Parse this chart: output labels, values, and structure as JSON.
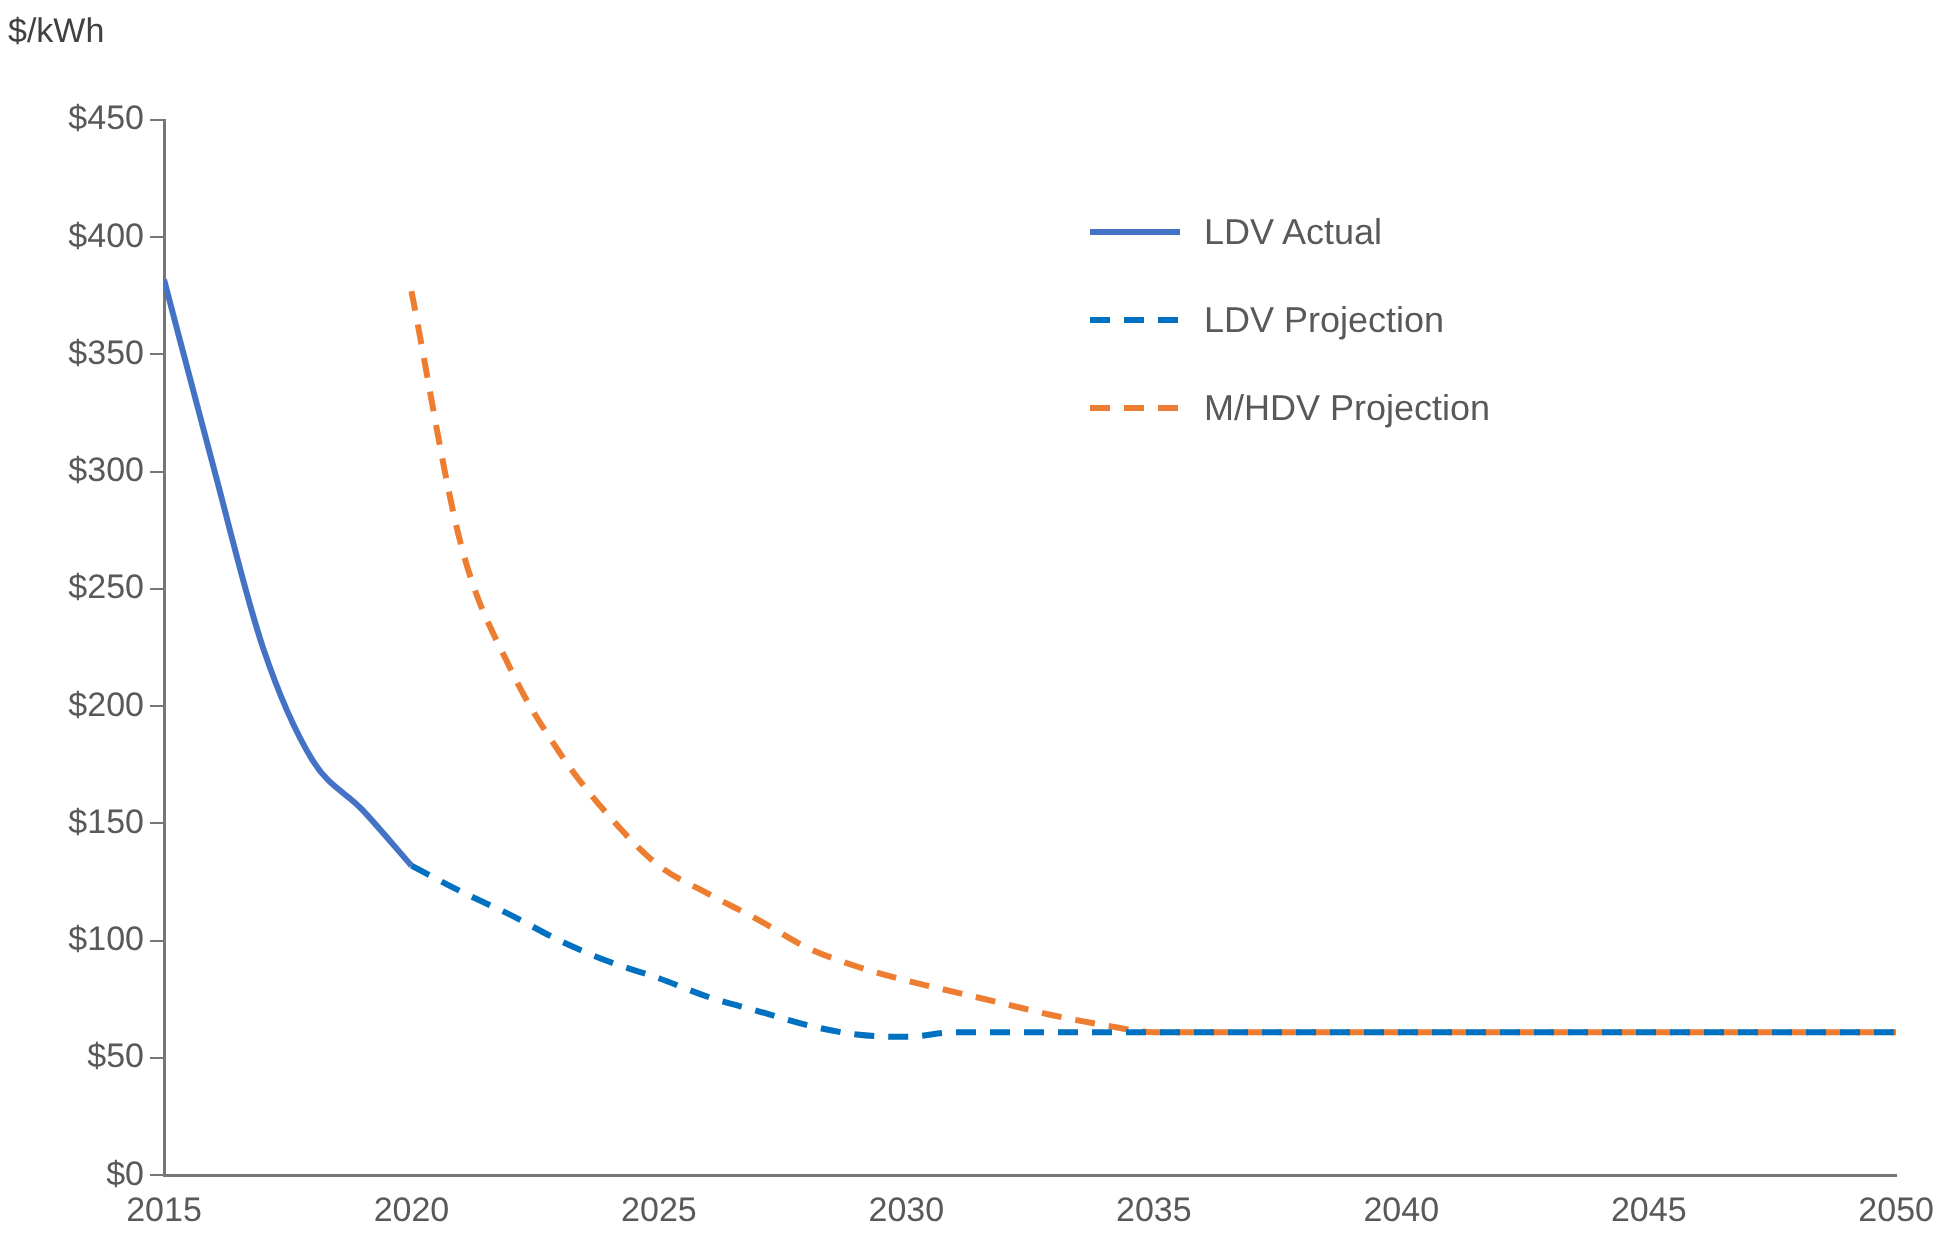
{
  "chart_data": {
    "type": "line",
    "ylabel": "$/kWh",
    "legend": "top right",
    "marker": "none",
    "grid": false,
    "xlim": [
      2015,
      2050
    ],
    "xticks": [
      2015,
      2020,
      2025,
      2030,
      2035,
      2040,
      2045,
      2050
    ],
    "ylim": [
      0,
      450
    ],
    "yticks": [
      {
        "value": 0,
        "label": "$0"
      },
      {
        "value": 50,
        "label": "$50"
      },
      {
        "value": 100,
        "label": "$100"
      },
      {
        "value": 150,
        "label": "$150"
      },
      {
        "value": 200,
        "label": "$200"
      },
      {
        "value": 250,
        "label": "$250"
      },
      {
        "value": 300,
        "label": "$300"
      },
      {
        "value": 350,
        "label": "$350"
      },
      {
        "value": 400,
        "label": "$400"
      },
      {
        "value": 450,
        "label": "$450"
      }
    ],
    "series": [
      {
        "name": "LDV Actual",
        "color": "#4472c4",
        "line_style": "solid",
        "x": [
          2015,
          2016,
          2017,
          2018,
          2019,
          2020
        ],
        "values": [
          382,
          302,
          225,
          177,
          156,
          132
        ]
      },
      {
        "name": "LDV Projection",
        "color": "#0070c0",
        "line_style": "dashed",
        "x": [
          2020,
          2021,
          2022,
          2023,
          2024,
          2025,
          2026,
          2027,
          2028,
          2029,
          2030,
          2031,
          2035,
          2040,
          2045,
          2050
        ],
        "values": [
          132,
          121,
          111,
          100,
          91,
          84,
          76,
          70,
          64,
          60,
          59,
          61,
          61,
          61,
          61,
          61
        ]
      },
      {
        "name": "M/HDV Projection",
        "color": "#ed7d31",
        "line_style": "dashed",
        "x": [
          2020,
          2021,
          2022,
          2023,
          2024,
          2025,
          2026,
          2027,
          2028,
          2029,
          2030,
          2031,
          2032,
          2033,
          2034,
          2035,
          2040,
          2045,
          2050
        ],
        "values": [
          377,
          269,
          216,
          180,
          153,
          132,
          120,
          109,
          97,
          89,
          83,
          78,
          73,
          68,
          64,
          61,
          61,
          61,
          61
        ]
      }
    ]
  }
}
